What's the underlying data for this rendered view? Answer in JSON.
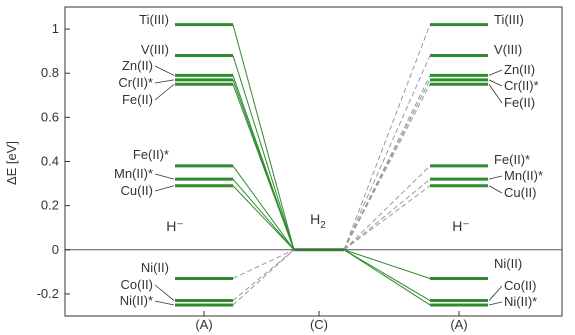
{
  "chart_data": {
    "type": "line",
    "ylabel": "ΔE [eV]",
    "ylim": [
      -0.3,
      1.1
    ],
    "yticks": [
      -0.2,
      0,
      0.2,
      0.4,
      0.6,
      0.8,
      1
    ],
    "ytick_labels": [
      "-0.2",
      "0",
      "0.2",
      "0.4",
      "0.6",
      "0.8",
      "1"
    ],
    "xticks": [
      "(A)",
      "(C)",
      "(A)"
    ],
    "reference_level": 0,
    "colors": {
      "level": "#2e8b2e",
      "solid_connector": "#2e8b2e",
      "dashed_connector": "#999999",
      "axis": "#333333"
    },
    "groups": [
      {
        "label": "H⁻",
        "column": 0
      },
      {
        "label": "H₂",
        "column": 1,
        "base": "H",
        "sub": "2"
      },
      {
        "label": "H⁻",
        "column": 2
      }
    ],
    "series": [
      {
        "name": "Ti(III)",
        "value": 1.02
      },
      {
        "name": "V(III)",
        "value": 0.88
      },
      {
        "name": "Zn(II)",
        "value": 0.79
      },
      {
        "name": "Cr(II)*",
        "value": 0.77
      },
      {
        "name": "Fe(II)",
        "value": 0.75
      },
      {
        "name": "Fe(II)*",
        "value": 0.38
      },
      {
        "name": "Mn(II)*",
        "value": 0.32
      },
      {
        "name": "Cu(II)",
        "value": 0.29
      },
      {
        "name": "Ni(II)",
        "value": -0.13
      },
      {
        "name": "Co(II)",
        "value": -0.23
      },
      {
        "name": "Ni(II)*",
        "value": -0.25
      }
    ],
    "left_connectors": "solid for positive levels, dashed for negative levels",
    "right_connectors": "dashed for positive levels, solid for negative levels"
  }
}
